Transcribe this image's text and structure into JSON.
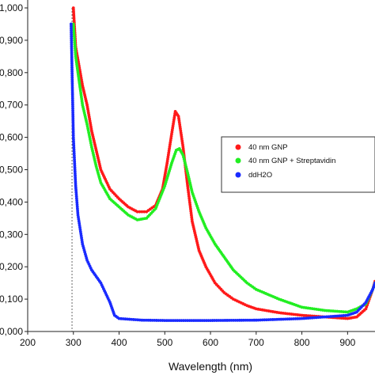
{
  "chart_data": {
    "type": "scatter",
    "xlabel": "Wavelength (nm)",
    "ylabel": "",
    "xlim": [
      200,
      960
    ],
    "ylim": [
      0,
      1.0
    ],
    "x_ticks": [
      "200",
      "300",
      "400",
      "500",
      "600",
      "700",
      "800",
      "900"
    ],
    "y_ticks": [
      "0,000",
      "0,100",
      "0,200",
      "0,300",
      "0,400",
      "0,500",
      "0,600",
      "0,700",
      "0,800",
      "0,900",
      "1,000"
    ],
    "legend_position": "right",
    "series": [
      {
        "name": "40 nm GNP",
        "color": "#ff1a1a",
        "x": [
          300,
          305,
          310,
          320,
          330,
          340,
          350,
          360,
          380,
          400,
          420,
          440,
          460,
          480,
          495,
          505,
          515,
          523,
          530,
          540,
          550,
          560,
          575,
          590,
          610,
          630,
          650,
          680,
          700,
          750,
          800,
          850,
          900,
          920,
          940,
          955,
          960
        ],
        "y": [
          1.0,
          0.88,
          0.84,
          0.76,
          0.7,
          0.62,
          0.56,
          0.5,
          0.44,
          0.41,
          0.385,
          0.37,
          0.37,
          0.39,
          0.44,
          0.52,
          0.61,
          0.68,
          0.665,
          0.57,
          0.45,
          0.34,
          0.25,
          0.2,
          0.15,
          0.12,
          0.1,
          0.08,
          0.07,
          0.058,
          0.05,
          0.045,
          0.04,
          0.045,
          0.07,
          0.13,
          0.155
        ]
      },
      {
        "name": "40 nm GNP + Streptavidin",
        "color": "#22ee22",
        "x": [
          300,
          305,
          310,
          320,
          330,
          340,
          350,
          360,
          380,
          400,
          420,
          440,
          460,
          480,
          500,
          515,
          525,
          532,
          540,
          550,
          560,
          575,
          590,
          610,
          630,
          650,
          680,
          700,
          750,
          800,
          850,
          900,
          920,
          940,
          955,
          960
        ],
        "y": [
          0.95,
          0.85,
          0.8,
          0.7,
          0.64,
          0.57,
          0.51,
          0.46,
          0.41,
          0.385,
          0.36,
          0.345,
          0.35,
          0.38,
          0.45,
          0.52,
          0.56,
          0.565,
          0.545,
          0.49,
          0.43,
          0.37,
          0.32,
          0.27,
          0.23,
          0.19,
          0.15,
          0.13,
          0.1,
          0.075,
          0.065,
          0.06,
          0.07,
          0.085,
          0.13,
          0.15
        ]
      },
      {
        "name": "ddH2O",
        "color": "#1a2bff",
        "x": [
          295,
          300,
          305,
          310,
          320,
          330,
          340,
          350,
          360,
          370,
          380,
          390,
          400,
          450,
          500,
          600,
          700,
          800,
          850,
          900,
          920,
          940,
          955,
          960
        ],
        "y": [
          0.95,
          0.6,
          0.45,
          0.36,
          0.27,
          0.22,
          0.19,
          0.17,
          0.15,
          0.12,
          0.09,
          0.05,
          0.04,
          0.035,
          0.034,
          0.034,
          0.035,
          0.04,
          0.045,
          0.05,
          0.06,
          0.09,
          0.13,
          0.15
        ]
      }
    ]
  }
}
